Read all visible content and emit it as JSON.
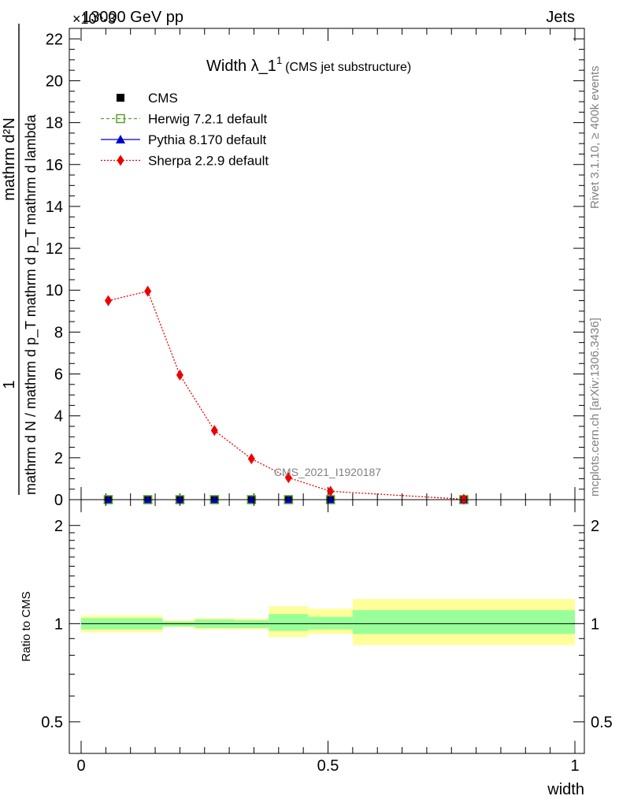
{
  "header": {
    "left": "13000 GeV pp",
    "right": "Jets",
    "exponent": "×10^-3"
  },
  "side_labels": {
    "top": "Rivet 3.1.10, ≥ 400k events",
    "bottom": "mcplots.cern.ch [arXiv:1306.3436]"
  },
  "watermark": "CMS_2021_I1920187",
  "chart_data": [
    {
      "type": "line",
      "title": "Width λ_1¹ (CMS jet substructure)",
      "title_main": "Width λ_1",
      "title_sup": "1",
      "title_sub": "(CMS jet substructure)",
      "ylabel_parts": [
        "1",
        "mathrm d N / mathrm d p_T mathrm d p_T mathrm d lambda",
        "mathrm d²N"
      ],
      "xlabel": "width",
      "xlim": [
        0,
        1
      ],
      "ylim": [
        0,
        22.5
      ],
      "y_multiplier": "×10^-3",
      "y_ticks": [
        0,
        2,
        4,
        6,
        8,
        10,
        12,
        14,
        16,
        18,
        20,
        22
      ],
      "series": [
        {
          "name": "CMS",
          "marker": "square",
          "color": "#000000",
          "x": [
            0.055,
            0.135,
            0.2,
            0.27,
            0.345,
            0.42,
            0.505,
            0.775
          ],
          "y": [
            0,
            0,
            0,
            0,
            0,
            0,
            0,
            0
          ]
        },
        {
          "name": "Herwig 7.2.1 default",
          "marker": "open-square",
          "color": "#5aa02c",
          "x": [
            0.055,
            0.135,
            0.2,
            0.27,
            0.345,
            0.42,
            0.505,
            0.775
          ],
          "y": [
            0,
            0,
            0,
            0,
            0,
            0,
            0,
            0
          ]
        },
        {
          "name": "Pythia 8.170 default",
          "marker": "triangle",
          "color": "#0000cc",
          "x": [
            0.055,
            0.135,
            0.2,
            0.27,
            0.345,
            0.42,
            0.505,
            0.775
          ],
          "y": [
            0,
            0,
            0,
            0,
            0,
            0,
            0,
            0
          ]
        },
        {
          "name": "Sherpa 2.2.9 default",
          "marker": "diamond",
          "color": "#ee0000",
          "x": [
            0.055,
            0.135,
            0.2,
            0.27,
            0.345,
            0.42,
            0.505,
            0.775
          ],
          "y": [
            9.5,
            9.95,
            5.95,
            3.3,
            1.95,
            1.05,
            0.4,
            0.02
          ]
        }
      ]
    },
    {
      "type": "area",
      "ylabel": "Ratio to CMS",
      "xlabel": "width",
      "xlim": [
        0,
        1
      ],
      "ylim": [
        0.4,
        2.4
      ],
      "y_scale": "log",
      "y_tick_labels": [
        {
          "v": 0.5,
          "label": "0.5"
        },
        {
          "v": 1,
          "label": "1"
        },
        {
          "v": 2,
          "label": "2"
        }
      ],
      "x_tick_labels": [
        {
          "v": 0,
          "label": "0"
        },
        {
          "v": 0.5,
          "label": "0.5"
        },
        {
          "v": 1,
          "label": "1"
        }
      ],
      "bins": [
        {
          "lo": 0.0,
          "hi": 0.165,
          "stat": [
            0.96,
            1.04
          ],
          "tot": [
            0.94,
            1.06
          ]
        },
        {
          "lo": 0.165,
          "hi": 0.23,
          "stat": [
            0.98,
            1.015
          ],
          "tot": [
            0.975,
            1.025
          ]
        },
        {
          "lo": 0.23,
          "hi": 0.31,
          "stat": [
            0.97,
            1.03
          ],
          "tot": [
            0.96,
            1.04
          ]
        },
        {
          "lo": 0.31,
          "hi": 0.38,
          "stat": [
            0.97,
            1.025
          ],
          "tot": [
            0.96,
            1.035
          ]
        },
        {
          "lo": 0.38,
          "hi": 0.46,
          "stat": [
            0.95,
            1.07
          ],
          "tot": [
            0.91,
            1.13
          ]
        },
        {
          "lo": 0.46,
          "hi": 0.55,
          "stat": [
            0.96,
            1.05
          ],
          "tot": [
            0.93,
            1.11
          ]
        },
        {
          "lo": 0.55,
          "hi": 1.0,
          "stat": [
            0.93,
            1.1
          ],
          "tot": [
            0.86,
            1.19
          ]
        }
      ],
      "colors": {
        "stat": "#99ff99",
        "tot": "#ffff99",
        "ref": "#000000"
      }
    }
  ]
}
